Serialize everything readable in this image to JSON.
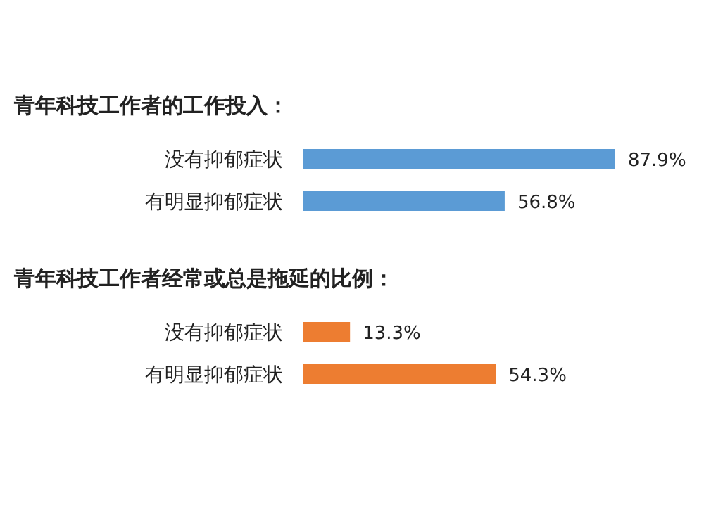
{
  "chart_data": [
    {
      "type": "bar",
      "orientation": "horizontal",
      "title": "青年科技工作者的工作投入：",
      "categories": [
        "没有抑郁症状",
        "有明显抑郁症状"
      ],
      "values": [
        87.9,
        56.8
      ],
      "value_labels": [
        "87.9%",
        "56.8%"
      ],
      "color": "#5b9bd5"
    },
    {
      "type": "bar",
      "orientation": "horizontal",
      "title": "青年科技工作者经常或总是拖延的比例：",
      "categories": [
        "没有抑郁症状",
        "有明显抑郁症状"
      ],
      "values": [
        13.3,
        54.3
      ],
      "value_labels": [
        "13.3%",
        "54.3%"
      ],
      "color": "#ed7d31"
    }
  ]
}
